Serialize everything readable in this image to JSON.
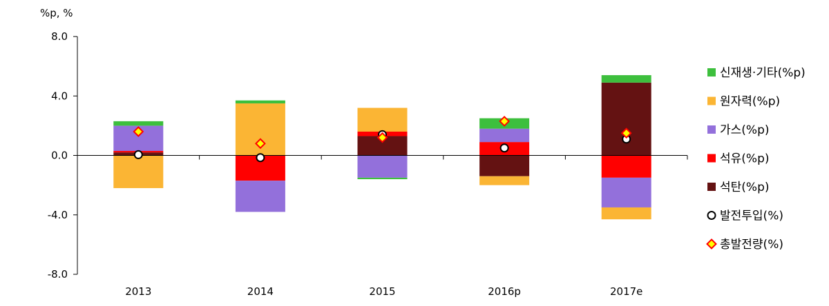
{
  "chart_data": {
    "type": "bar",
    "stacked": true,
    "unit_label": "%p, %",
    "categories": [
      "2013",
      "2014",
      "2015",
      "2016p",
      "2017e"
    ],
    "ylim": [
      -8.0,
      8.0
    ],
    "yticks": [
      8.0,
      4.0,
      0.0,
      -4.0,
      -8.0
    ],
    "ytick_labels": [
      "8.0",
      "4.0",
      "0.0",
      "-4.0",
      "-8.0"
    ],
    "grid": false,
    "legend_position": "right",
    "series": [
      {
        "name": "석탄(%p)",
        "kind": "bar",
        "color": "#641212",
        "values": [
          0.2,
          0.0,
          1.3,
          -1.4,
          4.9
        ]
      },
      {
        "name": "석유(%p)",
        "kind": "bar",
        "color": "#ff0000",
        "values": [
          0.1,
          -1.7,
          0.3,
          0.9,
          -1.5
        ]
      },
      {
        "name": "가스(%p)",
        "kind": "bar",
        "color": "#9370db",
        "values": [
          1.7,
          -2.1,
          -1.5,
          0.9,
          -2.0
        ]
      },
      {
        "name": "원자력(%p)",
        "kind": "bar",
        "color": "#fbb534",
        "values": [
          -2.2,
          3.5,
          1.6,
          -0.6,
          -0.8
        ]
      },
      {
        "name": "신재생·기타(%p)",
        "kind": "bar",
        "color": "#3dbf3d",
        "values": [
          0.3,
          0.2,
          -0.1,
          0.7,
          0.5
        ]
      },
      {
        "name": "발전투입(%)",
        "kind": "marker",
        "marker": "circle",
        "color": "#ffffff",
        "stroke": "#000000",
        "values": [
          0.05,
          -0.15,
          1.4,
          0.5,
          1.1
        ]
      },
      {
        "name": "총발전량(%)",
        "kind": "marker",
        "marker": "diamond",
        "color": "#ffff00",
        "stroke": "#ff0000",
        "values": [
          1.6,
          0.8,
          1.2,
          2.3,
          1.5
        ]
      }
    ],
    "legend_order": [
      "신재생·기타(%p)",
      "원자력(%p)",
      "가스(%p)",
      "석유(%p)",
      "석탄(%p)",
      "발전투입(%)",
      "총발전량(%)"
    ]
  }
}
